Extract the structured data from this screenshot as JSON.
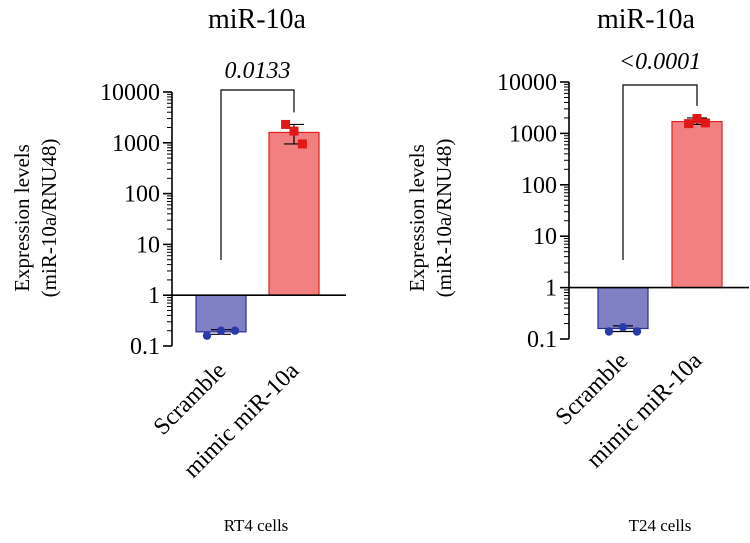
{
  "colors": {
    "scramble_fill": "#8080c4",
    "scramble_stroke": "#2c2c9c",
    "scramble_point": "#2a3aa8",
    "mimic_fill": "#f28080",
    "mimic_stroke": "#e02020",
    "mimic_point": "#e01818",
    "axis": "#000000"
  },
  "chart_data": [
    {
      "type": "bar",
      "title": "miR-10a",
      "subtitle": "RT4 cells",
      "ylabel_line1": "Expression levels",
      "ylabel_line2": "(miR-10a/RNU48)",
      "yscale": "log",
      "ylim": [
        0.1,
        10000
      ],
      "baseline": 1,
      "yticks": [
        0.1,
        1,
        10,
        100,
        1000,
        10000
      ],
      "ytick_labels": [
        "0.1",
        "1",
        "10",
        "100",
        "1000",
        "10000"
      ],
      "categories": [
        "Scramble",
        "mimic miR-10a"
      ],
      "values": [
        0.19,
        1600
      ],
      "error_low": [
        0.17,
        950
      ],
      "error_high": [
        0.21,
        2300
      ],
      "points": [
        [
          0.16,
          0.2,
          0.2
        ],
        [
          2300,
          1700,
          950
        ]
      ],
      "annotation": "0.0133"
    },
    {
      "type": "bar",
      "title": "miR-10a",
      "subtitle": "T24 cells",
      "ylabel_line1": "Expression levels",
      "ylabel_line2": "(miR-10a/RNU48)",
      "yscale": "log",
      "ylim": [
        0.1,
        10000
      ],
      "baseline": 1,
      "yticks": [
        0.1,
        1,
        10,
        100,
        1000,
        10000
      ],
      "ytick_labels": [
        "0.1",
        "1",
        "10",
        "100",
        "1000",
        "10000"
      ],
      "categories": [
        "Scramble",
        "mimic miR-10a"
      ],
      "values": [
        0.16,
        1700
      ],
      "error_low": [
        0.14,
        1500
      ],
      "error_high": [
        0.18,
        2000
      ],
      "points": [
        [
          0.14,
          0.17,
          0.14
        ],
        [
          1550,
          1950,
          1600
        ]
      ],
      "annotation": "<0.0001"
    }
  ]
}
